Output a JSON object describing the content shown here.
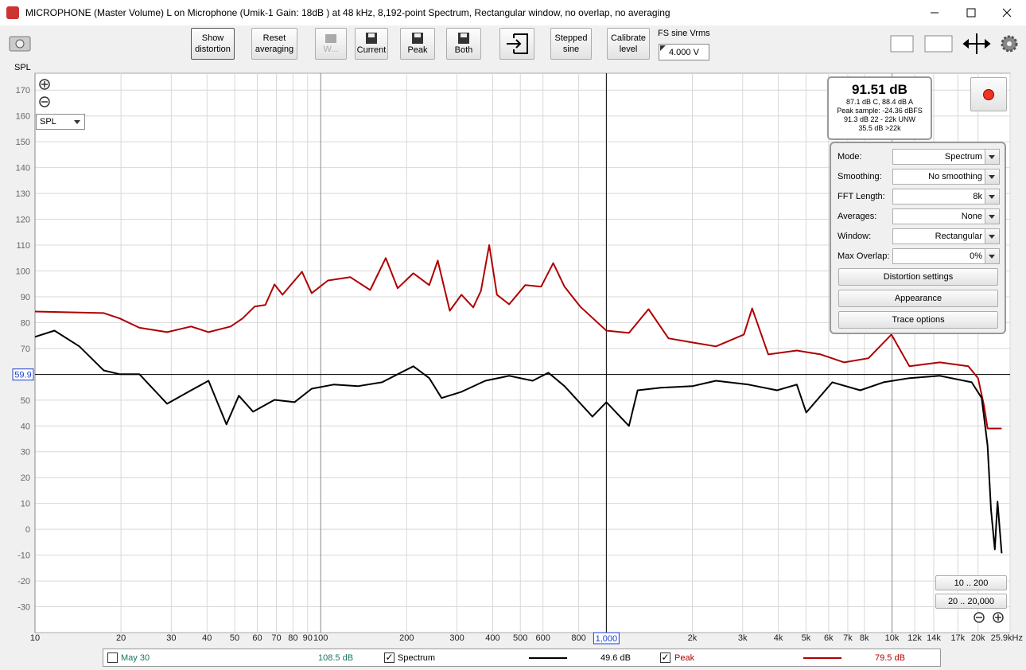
{
  "window": {
    "title": "MICROPHONE (Master Volume) L on Microphone (Umik-1  Gain: 18dB  ) at 48 kHz, 8,192-point Spectrum, Rectangular window, no overlap, no averaging"
  },
  "toolbar": {
    "buttons": [
      "Show distortion",
      "Reset averaging",
      "W...",
      "Current",
      "Peak",
      "Both",
      "Stepped sine",
      "Calibrate level"
    ],
    "fs_label": "FS sine Vrms",
    "fs_value": "4.000 V"
  },
  "spl_select": "SPL",
  "level_panel": {
    "main": "91.51 dB",
    "lines": [
      "87.1 dB C, 88.4 dB A",
      "Peak sample: -24.36 dBFS",
      "91.3 dB 22 - 22k UNW",
      "35.5 dB >22k"
    ]
  },
  "settings": {
    "rows": [
      {
        "label": "Mode:",
        "value": "Spectrum"
      },
      {
        "label": "Smoothing:",
        "value": "No  smoothing"
      },
      {
        "label": "FFT Length:",
        "value": "8k"
      },
      {
        "label": "Averages:",
        "value": "None"
      },
      {
        "label": "Window:",
        "value": "Rectangular"
      },
      {
        "label": "Max Overlap:",
        "value": "0%"
      }
    ],
    "buttons": [
      "Distortion settings",
      "Appearance",
      "Trace options"
    ]
  },
  "range_buttons": [
    "10 .. 200",
    "20 .. 20,000"
  ],
  "chart_data": {
    "type": "line",
    "y_axis_label": "SPL",
    "xscale": "log",
    "xlim": [
      10,
      25900
    ],
    "ylim": [
      -40,
      175
    ],
    "yticks": [
      170,
      160,
      150,
      140,
      130,
      120,
      110,
      100,
      90,
      80,
      70,
      60,
      50,
      40,
      30,
      20,
      10,
      0,
      -10,
      -20,
      -30
    ],
    "xticks": [
      10,
      20,
      30,
      40,
      50,
      60,
      70,
      80,
      90,
      100,
      200,
      300,
      400,
      500,
      600,
      800,
      {
        "value": 2000,
        "label": "2k"
      },
      {
        "value": 3000,
        "label": "3k"
      },
      {
        "value": 4000,
        "label": "4k"
      },
      {
        "value": 5000,
        "label": "5k"
      },
      {
        "value": 6000,
        "label": "6k"
      },
      {
        "value": 7000,
        "label": "7k"
      },
      {
        "value": 8000,
        "label": "8k"
      },
      {
        "value": 10000,
        "label": "10k"
      },
      {
        "value": 12000,
        "label": "12k"
      },
      {
        "value": 14000,
        "label": "14k"
      },
      {
        "value": 17000,
        "label": "17k"
      },
      {
        "value": 20000,
        "label": "20k"
      },
      {
        "value": 25900,
        "label": "25.9kHz"
      }
    ],
    "grid": true,
    "cursor": {
      "x": {
        "value": 1000,
        "label": "1,000"
      },
      "y": 59.9
    },
    "series": [
      {
        "name": "Spectrum",
        "color": "#000000",
        "checked": true,
        "reading": "49.6 dB",
        "x": [
          10,
          11.7,
          14.3,
          17.4,
          19.8,
          23.2,
          29,
          35.2,
          40.5,
          46.8,
          51.7,
          58,
          68.9,
          81,
          93,
          111,
          135,
          164,
          186,
          211,
          240,
          265,
          311,
          377,
          457,
          552,
          627,
          714,
          894,
          1000,
          1200,
          1287,
          1550,
          2000,
          2420,
          3140,
          3960,
          4640,
          5010,
          6180,
          7740,
          9340,
          11500,
          14700,
          19000,
          20600,
          21600,
          22200,
          22900,
          23400,
          24200
        ],
        "values": [
          74.5,
          76.9,
          70.8,
          61.5,
          60,
          60,
          48.6,
          53.8,
          57.5,
          40.6,
          51.7,
          45.5,
          50.1,
          49.2,
          54.4,
          56,
          55.4,
          56.9,
          60,
          63.1,
          58.5,
          50.8,
          53.2,
          57.5,
          59.4,
          57.5,
          60.6,
          55.4,
          43.6,
          49.2,
          40,
          53.8,
          54.8,
          55.4,
          57.5,
          56,
          53.8,
          56,
          45.2,
          56.9,
          53.8,
          56.9,
          58.5,
          59.4,
          56.9,
          50.8,
          32.3,
          7.6,
          -7.8,
          10.7,
          -9.3
        ]
      },
      {
        "name": "Peak",
        "color": "#b00000",
        "checked": true,
        "reading": "79.5 dB",
        "x": [
          10,
          17.4,
          19.8,
          23.2,
          29,
          35.2,
          40.5,
          48.4,
          53.3,
          58.7,
          64,
          68.9,
          73.5,
          86,
          93,
          106,
          127,
          149,
          169,
          186,
          211,
          240,
          257,
          283,
          311,
          342,
          364,
          389,
          414,
          457,
          520,
          591,
          652,
          714,
          810,
          1000,
          1200,
          1405,
          1650,
          2000,
          2420,
          3030,
          3240,
          3690,
          4640,
          5630,
          6800,
          8270,
          9950,
          11500,
          14700,
          18500,
          20000,
          21000,
          21600,
          24200
        ],
        "values": [
          84.3,
          83.7,
          81.6,
          78,
          76.3,
          78.5,
          76.3,
          78.5,
          81.6,
          86.2,
          86.8,
          94.8,
          90.8,
          99.7,
          91.4,
          96.3,
          97.6,
          92.6,
          105,
          93.3,
          99.1,
          94.5,
          104,
          84.6,
          90.8,
          85.9,
          92.3,
          110,
          90.8,
          87.1,
          94.5,
          93.9,
          103,
          93.9,
          86.2,
          76.9,
          76,
          85.2,
          73.9,
          72.3,
          70.8,
          75.4,
          85.5,
          67.7,
          69.2,
          67.7,
          64.6,
          66.2,
          75.4,
          63.1,
          64.6,
          63.1,
          58.5,
          47.7,
          39,
          39
        ]
      }
    ]
  },
  "inactive_series": [
    {
      "name": "May 30",
      "color": "#17775a",
      "checked": false,
      "reading": "108.5 dB"
    }
  ]
}
